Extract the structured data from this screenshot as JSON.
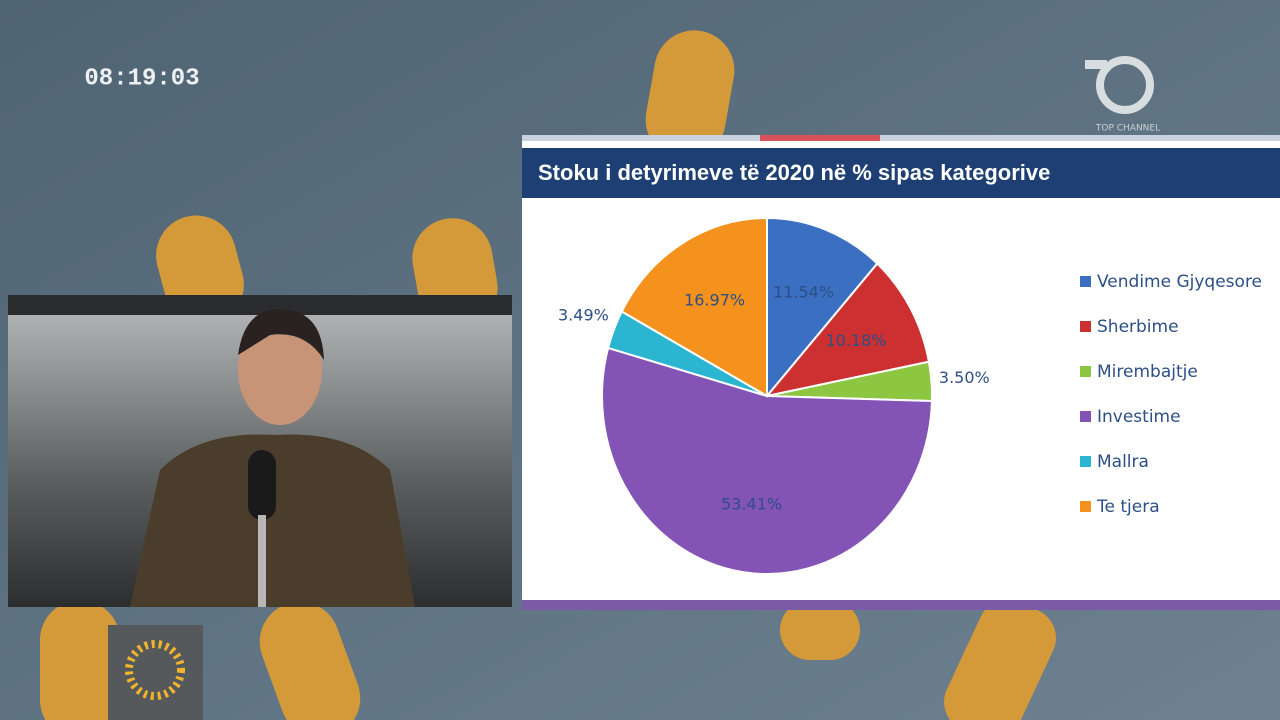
{
  "overlay": {
    "clock": "08:19:03",
    "channel": "TOP CHANNEL"
  },
  "chart_data": {
    "type": "pie",
    "title": "Stoku i detyrimeve të 2020 në % sipas kategorive",
    "categories": [
      "Vendime Gjyqesore",
      "Sherbime",
      "Mirembajtje",
      "Investime",
      "Mallra",
      "Te tjera"
    ],
    "values": [
      11.54,
      10.18,
      3.5,
      53.41,
      3.49,
      16.97
    ],
    "value_labels": [
      "11.54%",
      "10.18%",
      "3.50%",
      "53.41%",
      "3.49%",
      "16.97%"
    ],
    "colors": [
      "#3b6fc2",
      "#cc3030",
      "#8dc641",
      "#8453b6",
      "#2bb5d0",
      "#f5921e"
    ],
    "legend": "right"
  }
}
